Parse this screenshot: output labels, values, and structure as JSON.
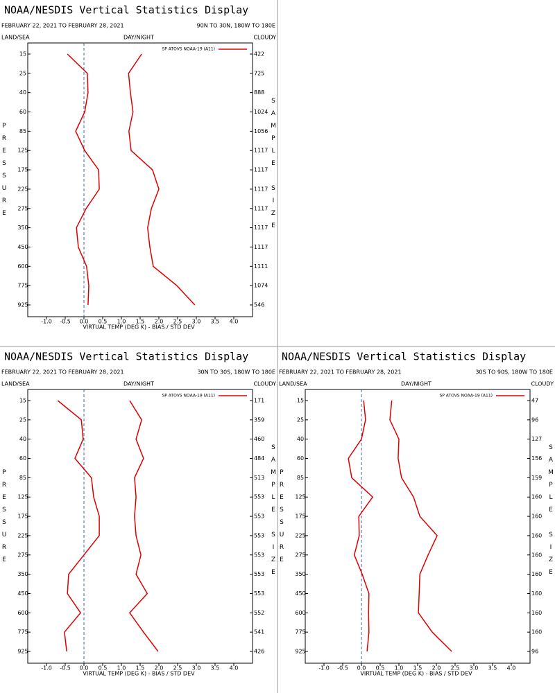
{
  "chart_data": [
    {
      "type": "profile",
      "title": "NOAA/NESDIS Vertical Statistics Display",
      "date_range": "FEBRUARY 22, 2021 TO FEBRUARY 28, 2021",
      "region": "90N TO 30N, 180W TO 180E",
      "left_header": "LAND/SEA",
      "center_header": "DAY/NIGHT",
      "right_header": "CLOUDY",
      "y_label": "PRESSURE",
      "y2_label": "SAMPLE SIZE",
      "x_label": "VIRTUAL TEMP (DEG K) - BIAS / STD DEV",
      "legend": "SP ATOVS NOAA-19 (A11)",
      "categories": [
        "15",
        "25",
        "40",
        "60",
        "85",
        "125",
        "175",
        "225",
        "275",
        "350",
        "450",
        "600",
        "775",
        "925"
      ],
      "sample_size": [
        "422",
        "725",
        "888",
        "1024",
        "1056",
        "1117",
        "1117",
        "1117",
        "1117",
        "1117",
        "1117",
        "1111",
        "1074",
        "546"
      ],
      "series": [
        {
          "color": "#dd0000",
          "values": [
            -0.44,
            0.09,
            0.11,
            0.02,
            -0.22,
            0.02,
            0.39,
            0.41,
            0.06,
            -0.2,
            -0.15,
            0.07,
            0.13,
            0.11
          ]
        },
        {
          "color": "#dd0000",
          "values": [
            1.54,
            1.19,
            1.24,
            1.31,
            1.2,
            1.26,
            1.83,
            2.0,
            1.8,
            1.7,
            1.76,
            1.85,
            2.48,
            2.96
          ]
        }
      ],
      "xlim": [
        -1.5,
        4.5
      ],
      "xticks": [
        {
          "value": -1,
          "label": "-1.0"
        },
        {
          "value": -0.5,
          "label": "-0.5"
        },
        {
          "value": 0,
          "label": "0.0"
        },
        {
          "value": 0.5,
          "label": "0.5"
        },
        {
          "value": 1,
          "label": "1.0"
        },
        {
          "value": 1.5,
          "label": "1.5"
        },
        {
          "value": 2,
          "label": "2.0"
        },
        {
          "value": 2.5,
          "label": "2.5"
        },
        {
          "value": 3,
          "label": "3.0"
        },
        {
          "value": 3.5,
          "label": "3.5"
        },
        {
          "value": 4,
          "label": "4.0"
        }
      ]
    },
    {
      "type": "profile",
      "title": "NOAA/NESDIS Vertical Statistics Display",
      "date_range": "FEBRUARY 22, 2021 TO FEBRUARY 28, 2021",
      "region": "30N TO 30S, 180W TO 180E",
      "left_header": "LAND/SEA",
      "center_header": "DAY/NIGHT",
      "right_header": "CLOUDY",
      "y_label": "PRESSURE",
      "y2_label": "SAMPLE SIZE",
      "x_label": "VIRTUAL TEMP (DEG K) - BIAS / STD DEV",
      "legend": "SP ATOVS NOAA-19 (A11)",
      "categories": [
        "15",
        "25",
        "40",
        "60",
        "85",
        "125",
        "175",
        "225",
        "275",
        "350",
        "450",
        "600",
        "775",
        "925"
      ],
      "sample_size": [
        "171",
        "359",
        "460",
        "484",
        "513",
        "553",
        "553",
        "553",
        "553",
        "553",
        "553",
        "552",
        "541",
        "426"
      ],
      "series": [
        {
          "color": "#dd0000",
          "values": [
            -0.7,
            -0.07,
            -0.02,
            -0.24,
            0.2,
            0.26,
            0.41,
            0.41,
            0,
            -0.41,
            -0.44,
            -0.09,
            -0.52,
            -0.46
          ]
        },
        {
          "color": "#dd0000",
          "values": [
            1.22,
            1.54,
            1.39,
            1.59,
            1.35,
            1.39,
            1.35,
            1.39,
            1.52,
            1.39,
            1.69,
            1.22,
            1.59,
            1.98
          ]
        }
      ],
      "xlim": [
        -1.5,
        4.5
      ],
      "xticks": [
        {
          "value": -1,
          "label": "-1.0"
        },
        {
          "value": -0.5,
          "label": "-0.5"
        },
        {
          "value": 0,
          "label": "0.0"
        },
        {
          "value": 0.5,
          "label": "0.5"
        },
        {
          "value": 1,
          "label": "1.0"
        },
        {
          "value": 1.5,
          "label": "1.5"
        },
        {
          "value": 2,
          "label": "2.0"
        },
        {
          "value": 2.5,
          "label": "2.5"
        },
        {
          "value": 3,
          "label": "3.0"
        },
        {
          "value": 3.5,
          "label": "3.5"
        },
        {
          "value": 4,
          "label": "4.0"
        }
      ]
    },
    {
      "type": "profile",
      "title": "NOAA/NESDIS Vertical Statistics Display",
      "date_range": "FEBRUARY 22, 2021 TO FEBRUARY 28, 2021",
      "region": "30S TO 90S, 180W TO 180E",
      "left_header": "LAND/SEA",
      "center_header": "DAY/NIGHT",
      "right_header": "CLOUDY",
      "y_label": "PRESSURE",
      "y2_label": "SAMPLE SIZE",
      "x_label": "VIRTUAL TEMP (DEG K) - BIAS / STD DEV",
      "legend": "SP ATOVS NOAA-19 (A11)",
      "categories": [
        "15",
        "25",
        "40",
        "60",
        "85",
        "125",
        "175",
        "225",
        "275",
        "350",
        "450",
        "600",
        "775",
        "925"
      ],
      "sample_size": [
        "47",
        "96",
        "127",
        "156",
        "159",
        "160",
        "160",
        "160",
        "160",
        "160",
        "160",
        "160",
        "160",
        "96"
      ],
      "series": [
        {
          "color": "#dd0000",
          "values": [
            0.06,
            0.11,
            0,
            -0.35,
            -0.26,
            0.3,
            -0.07,
            -0.06,
            -0.19,
            0.02,
            0.2,
            0.19,
            0.2,
            0.15
          ]
        },
        {
          "color": "#dd0000",
          "values": [
            0.81,
            0.76,
            1.0,
            0.98,
            1.07,
            1.39,
            1.56,
            2.02,
            1.78,
            1.56,
            1.54,
            1.52,
            1.89,
            2.41
          ]
        }
      ],
      "xlim": [
        -1.5,
        4.5
      ],
      "xticks": [
        {
          "value": -1,
          "label": "-1.0"
        },
        {
          "value": -0.5,
          "label": "-0.5"
        },
        {
          "value": 0,
          "label": "0.0"
        },
        {
          "value": 0.5,
          "label": "0.5"
        },
        {
          "value": 1,
          "label": "1.0"
        },
        {
          "value": 1.5,
          "label": "1.5"
        },
        {
          "value": 2,
          "label": "2.0"
        },
        {
          "value": 2.5,
          "label": "2.5"
        },
        {
          "value": 3,
          "label": "3.0"
        },
        {
          "value": 3.5,
          "label": "3.5"
        },
        {
          "value": 4,
          "label": "4.0"
        }
      ]
    }
  ]
}
